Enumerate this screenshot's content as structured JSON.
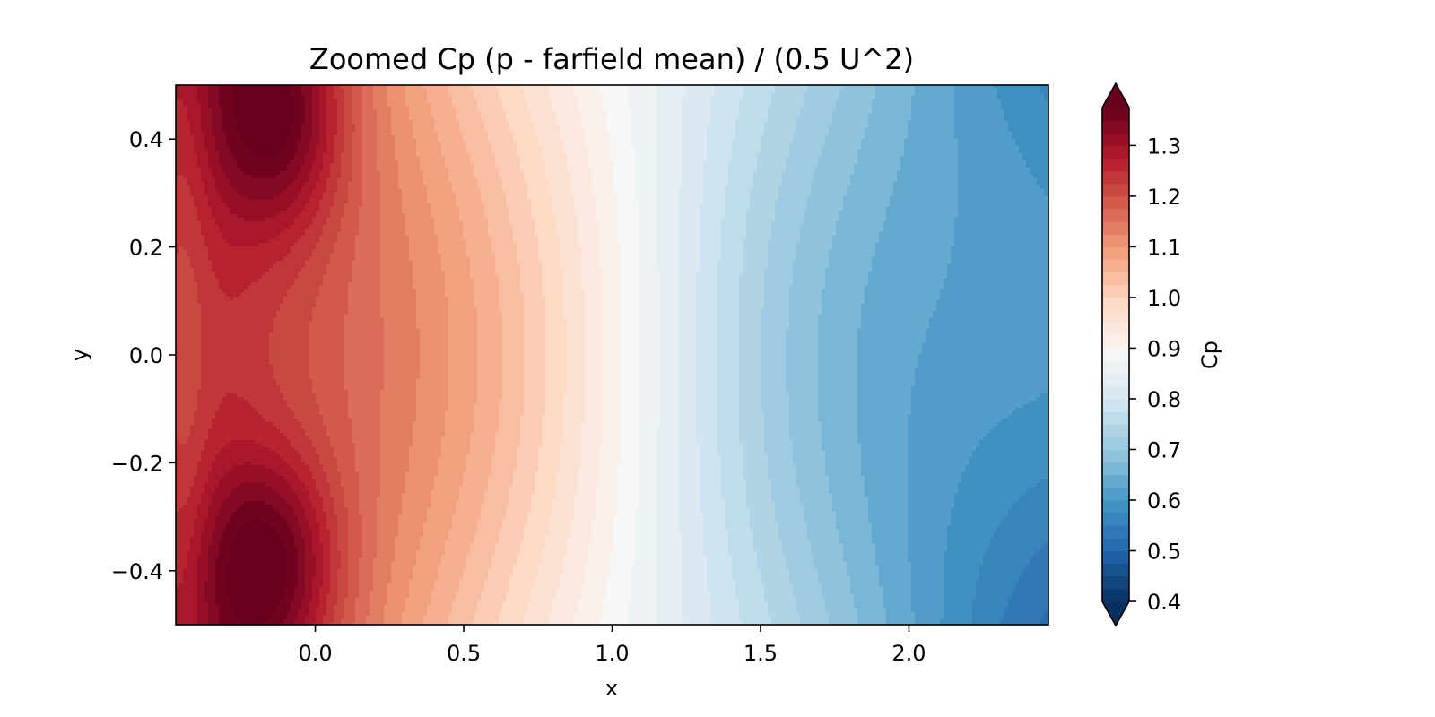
{
  "chart_data": {
    "type": "heatmap",
    "subtype": "filled-contour",
    "title": "Zoomed Cp (p - farfield mean) / (0.5 U^2)",
    "xlabel": "x",
    "ylabel": "y",
    "xlim": [
      -0.47,
      2.47
    ],
    "ylim": [
      -0.5,
      0.5
    ],
    "x_ticks": [
      0.0,
      0.5,
      1.0,
      1.5,
      2.0
    ],
    "x_tick_labels": [
      "0.0",
      "0.5",
      "1.0",
      "1.5",
      "2.0"
    ],
    "y_ticks": [
      0.4,
      0.2,
      0.0,
      -0.2,
      -0.4
    ],
    "y_tick_labels": [
      "0.4",
      "0.2",
      "0.0",
      "−0.2",
      "−0.4"
    ],
    "colormap": "RdBu_r",
    "colorbar": {
      "label": "Cp",
      "range": [
        0.4,
        1.375
      ],
      "extend": "both",
      "ticks": [
        0.4,
        0.5,
        0.6,
        0.7,
        0.8,
        0.9,
        1.0,
        1.1,
        1.2,
        1.3
      ],
      "tick_labels": [
        "0.4",
        "0.5",
        "0.6",
        "0.7",
        "0.8",
        "0.9",
        "1.0",
        "1.1",
        "1.2",
        "1.3"
      ],
      "levels": [
        0.4,
        0.425,
        0.45,
        0.475,
        0.5,
        0.525,
        0.55,
        0.575,
        0.6,
        0.625,
        0.65,
        0.675,
        0.7,
        0.725,
        0.75,
        0.775,
        0.8,
        0.825,
        0.85,
        0.875,
        0.9,
        0.925,
        0.95,
        0.975,
        1.0,
        1.025,
        1.05,
        1.075,
        1.1,
        1.125,
        1.15,
        1.175,
        1.2,
        1.225,
        1.25,
        1.275,
        1.3,
        1.325,
        1.35,
        1.375
      ],
      "under_color": "#053061",
      "over_color": "#67001f"
    },
    "features": [
      {
        "kind": "maximum",
        "x": -0.12,
        "y": 0.45,
        "value": 1.375
      },
      {
        "kind": "maximum",
        "x": -0.15,
        "y": -0.39,
        "value": 1.38
      },
      {
        "kind": "minimum",
        "x": 2.47,
        "y": -0.5,
        "value": 0.4
      }
    ],
    "grid": false
  }
}
